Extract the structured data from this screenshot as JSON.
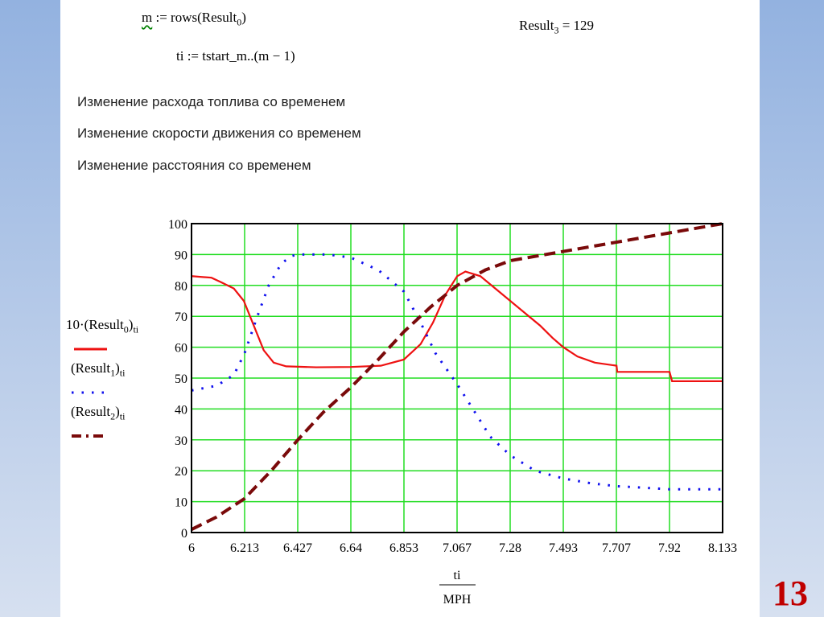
{
  "formulas": {
    "m_def_var": "m",
    "m_def_rest": " := rows(Result",
    "m_def_sub": "0",
    "m_def_end": ")",
    "ti_def": "ti := tstart_m..(m − 1)",
    "result3_name": "Result",
    "result3_sub": "3",
    "result3_val": " = 129"
  },
  "captions": [
    "Изменение расхода топлива со временем",
    "Изменение скорости движения со временем",
    "Изменение расстояния со временем"
  ],
  "legend": [
    {
      "pre": "10·(Result",
      "sub": "0",
      "post": ")",
      "idx": "ti",
      "color": "#ee1111",
      "style": "solid"
    },
    {
      "pre": "(Result",
      "sub": "1",
      "post": ")",
      "idx": "ti",
      "color": "#1010ee",
      "style": "dotted"
    },
    {
      "pre": "(Result",
      "sub": "2",
      "post": ")",
      "idx": "ti",
      "color": "#7a0a0a",
      "style": "dashed"
    }
  ],
  "page_number": "13",
  "chart_data": {
    "type": "line",
    "xlabel_top": "ti",
    "xlabel_bottom": "MPH",
    "xlim": [
      6,
      8.133
    ],
    "ylim": [
      0,
      100
    ],
    "grid": true,
    "x_ticks": [
      "6",
      "6.213",
      "6.427",
      "6.64",
      "6.853",
      "7.067",
      "7.28",
      "7.493",
      "7.707",
      "7.92",
      "8.133"
    ],
    "y_ticks": [
      "0",
      "10",
      "20",
      "30",
      "40",
      "50",
      "60",
      "70",
      "80",
      "90",
      "100"
    ],
    "series": [
      {
        "name": "10·(Result0)ti",
        "color": "#ee1111",
        "style": "solid",
        "points": [
          [
            6,
            83
          ],
          [
            6.08,
            82.5
          ],
          [
            6.12,
            81
          ],
          [
            6.17,
            79
          ],
          [
            6.21,
            75
          ],
          [
            6.25,
            67
          ],
          [
            6.29,
            59
          ],
          [
            6.33,
            55
          ],
          [
            6.38,
            53.8
          ],
          [
            6.5,
            53.5
          ],
          [
            6.64,
            53.6
          ],
          [
            6.76,
            54
          ],
          [
            6.853,
            56
          ],
          [
            6.92,
            61
          ],
          [
            6.97,
            68
          ],
          [
            7.02,
            77
          ],
          [
            7.067,
            83
          ],
          [
            7.1,
            84.5
          ],
          [
            7.16,
            83
          ],
          [
            7.22,
            79
          ],
          [
            7.28,
            75
          ],
          [
            7.34,
            71
          ],
          [
            7.4,
            67
          ],
          [
            7.45,
            63
          ],
          [
            7.493,
            60
          ],
          [
            7.55,
            57
          ],
          [
            7.62,
            55
          ],
          [
            7.707,
            54
          ],
          [
            7.71,
            52
          ],
          [
            7.92,
            52
          ],
          [
            7.93,
            49
          ],
          [
            8.133,
            49
          ]
        ]
      },
      {
        "name": "(Result1)ti",
        "color": "#1010ee",
        "style": "dotted",
        "points": [
          [
            6,
            46
          ],
          [
            6.1,
            47.5
          ],
          [
            6.17,
            51
          ],
          [
            6.213,
            58
          ],
          [
            6.26,
            69
          ],
          [
            6.31,
            80
          ],
          [
            6.36,
            87
          ],
          [
            6.4,
            89.5
          ],
          [
            6.427,
            90
          ],
          [
            6.55,
            90
          ],
          [
            6.64,
            89
          ],
          [
            6.75,
            85
          ],
          [
            6.853,
            78
          ],
          [
            6.92,
            68
          ],
          [
            6.98,
            58
          ],
          [
            7.067,
            48
          ],
          [
            7.13,
            40
          ],
          [
            7.2,
            31
          ],
          [
            7.28,
            25
          ],
          [
            7.38,
            20
          ],
          [
            7.493,
            17.5
          ],
          [
            7.6,
            16
          ],
          [
            7.707,
            15
          ],
          [
            7.82,
            14.5
          ],
          [
            7.92,
            14
          ],
          [
            8.133,
            14
          ]
        ]
      },
      {
        "name": "(Result2)ti",
        "color": "#7a0a0a",
        "style": "dashed",
        "points": [
          [
            6,
            1
          ],
          [
            6.1,
            5
          ],
          [
            6.213,
            11
          ],
          [
            6.32,
            20
          ],
          [
            6.427,
            30
          ],
          [
            6.53,
            39
          ],
          [
            6.64,
            47
          ],
          [
            6.75,
            56
          ],
          [
            6.853,
            65
          ],
          [
            6.96,
            73
          ],
          [
            7.067,
            80
          ],
          [
            7.18,
            85
          ],
          [
            7.28,
            88
          ],
          [
            7.493,
            91
          ],
          [
            7.707,
            94
          ],
          [
            7.92,
            97
          ],
          [
            8.133,
            100
          ]
        ]
      }
    ]
  }
}
